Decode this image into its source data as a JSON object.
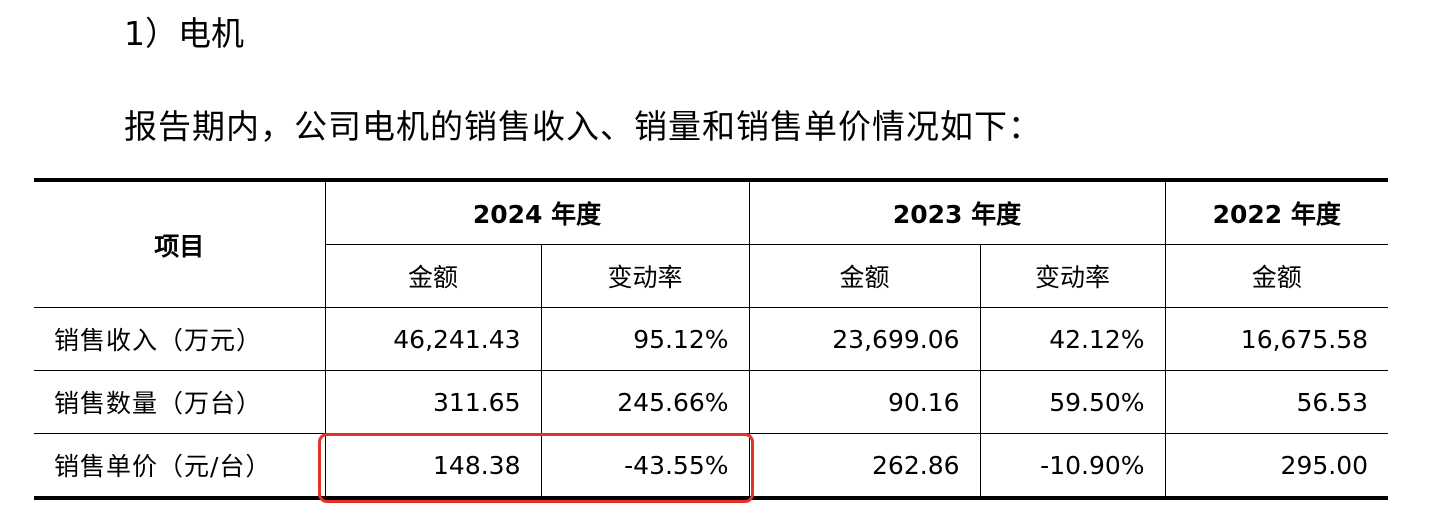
{
  "heading": "1）电机",
  "intro": "报告期内，公司电机的销售收入、销量和销售单价情况如下：",
  "table": {
    "item_header": "项目",
    "years": [
      "2024 年度",
      "2023 年度",
      "2022 年度"
    ],
    "sub_headers": {
      "amount": "金额",
      "change": "变动率"
    },
    "rows": [
      {
        "label": "销售收入（万元）",
        "values": [
          "46,241.43",
          "95.12%",
          "23,699.06",
          "42.12%",
          "16,675.58"
        ]
      },
      {
        "label": "销售数量（万台）",
        "values": [
          "311.65",
          "245.66%",
          "90.16",
          "59.50%",
          "56.53"
        ]
      },
      {
        "label": "销售单价（元/台）",
        "values": [
          "148.38",
          "-43.55%",
          "262.86",
          "-10.90%",
          "295.00"
        ]
      }
    ]
  },
  "highlight_color": "#e8302a"
}
